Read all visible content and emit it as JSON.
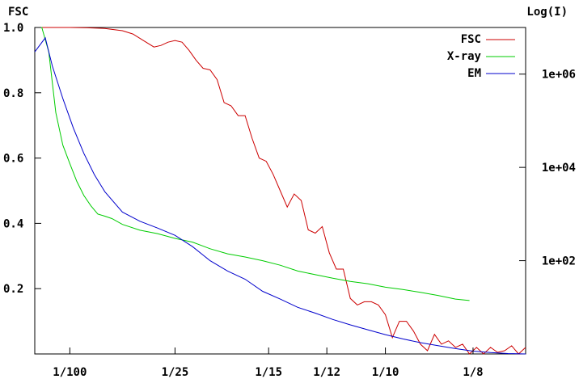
{
  "chart_data": {
    "type": "line",
    "title": "",
    "left_axis_label": "FSC",
    "right_axis_label": "Log(I)",
    "x_tick_labels": [
      "1/100",
      "1/25",
      "1/15",
      "1/12",
      "1/10",
      "1/8"
    ],
    "x_tick_values": [
      0.01,
      0.04,
      0.0667,
      0.0833,
      0.1,
      0.125
    ],
    "xlim": [
      0.0,
      0.14
    ],
    "y_left": {
      "ylim": [
        0.0,
        1.0
      ],
      "ticks": [
        0.2,
        0.4,
        0.6,
        0.8,
        1.0
      ],
      "tick_labels": [
        "0.2",
        "0.4",
        "0.6",
        "0.8",
        "1.0"
      ]
    },
    "y_right": {
      "scale": "log",
      "ylim": [
        1.0,
        10000000.0
      ],
      "ticks": [
        100,
        10000,
        1000000
      ],
      "tick_labels": [
        "1e+02",
        "1e+04",
        "1e+06"
      ]
    },
    "legend_position": "top-right",
    "grid": false,
    "series": [
      {
        "name": "FSC",
        "axis": "left",
        "color": "#cc0000",
        "x": [
          0.0,
          0.002,
          0.005,
          0.01,
          0.015,
          0.02,
          0.025,
          0.028,
          0.031,
          0.034,
          0.036,
          0.038,
          0.04,
          0.042,
          0.044,
          0.046,
          0.048,
          0.05,
          0.052,
          0.054,
          0.056,
          0.058,
          0.06,
          0.062,
          0.064,
          0.066,
          0.068,
          0.07,
          0.072,
          0.074,
          0.076,
          0.078,
          0.08,
          0.082,
          0.084,
          0.086,
          0.088,
          0.09,
          0.092,
          0.094,
          0.096,
          0.098,
          0.1,
          0.102,
          0.104,
          0.106,
          0.108,
          0.11,
          0.112,
          0.114,
          0.116,
          0.118,
          0.12,
          0.122,
          0.124,
          0.126,
          0.128,
          0.13,
          0.132,
          0.134,
          0.136,
          0.138,
          0.14
        ],
        "y": [
          1.0,
          1.0,
          1.0,
          1.0,
          0.999,
          0.997,
          0.99,
          0.98,
          0.96,
          0.94,
          0.945,
          0.955,
          0.96,
          0.955,
          0.93,
          0.9,
          0.875,
          0.87,
          0.84,
          0.77,
          0.76,
          0.73,
          0.73,
          0.66,
          0.6,
          0.59,
          0.55,
          0.5,
          0.45,
          0.49,
          0.47,
          0.38,
          0.37,
          0.39,
          0.31,
          0.26,
          0.26,
          0.17,
          0.15,
          0.16,
          0.16,
          0.15,
          0.12,
          0.05,
          0.1,
          0.1,
          0.07,
          0.03,
          0.01,
          0.06,
          0.03,
          0.04,
          0.02,
          0.03,
          0.0,
          0.02,
          0.0,
          0.02,
          0.005,
          0.01,
          0.025,
          0.0,
          0.02
        ]
      },
      {
        "name": "X-ray",
        "axis": "right",
        "color": "#00cc00",
        "x": [
          0.0,
          0.002,
          0.004,
          0.006,
          0.008,
          0.01,
          0.012,
          0.014,
          0.016,
          0.018,
          0.02,
          0.022,
          0.025,
          0.03,
          0.035,
          0.04,
          0.045,
          0.05,
          0.055,
          0.06,
          0.065,
          0.07,
          0.075,
          0.08,
          0.085,
          0.09,
          0.095,
          0.1,
          0.105,
          0.11,
          0.115,
          0.12,
          0.124
        ],
        "y": [
          20000000,
          10000000,
          3000000,
          150000,
          30000,
          12000,
          5000,
          2500,
          1500,
          1000,
          900,
          800,
          600,
          450,
          380,
          300,
          250,
          180,
          140,
          120,
          100,
          80,
          60,
          50,
          42,
          36,
          32,
          27,
          24,
          21,
          18,
          15,
          14
        ]
      },
      {
        "name": "EM",
        "axis": "right",
        "color": "#0000cc",
        "x": [
          0.0,
          0.003,
          0.005,
          0.008,
          0.011,
          0.014,
          0.017,
          0.02,
          0.025,
          0.03,
          0.035,
          0.04,
          0.045,
          0.05,
          0.055,
          0.06,
          0.065,
          0.07,
          0.075,
          0.08,
          0.085,
          0.09,
          0.095,
          0.1,
          0.105,
          0.11,
          0.115,
          0.12,
          0.125,
          0.13,
          0.135,
          0.14
        ],
        "y": [
          3000000,
          6000000,
          1500000,
          300000,
          70000,
          20000,
          7000,
          3000,
          1100,
          700,
          500,
          350,
          200,
          100,
          60,
          40,
          22,
          15,
          10,
          7.5,
          5.5,
          4.2,
          3.3,
          2.6,
          2.1,
          1.75,
          1.5,
          1.3,
          1.15,
          1.07,
          1.02,
          1.0
        ]
      }
    ]
  }
}
